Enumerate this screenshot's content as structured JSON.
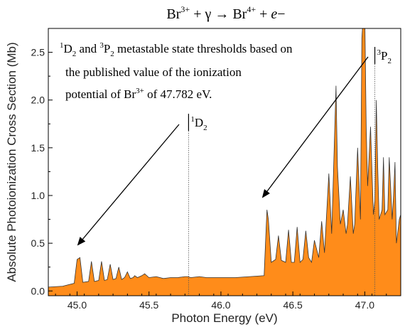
{
  "chart_data": {
    "type": "area",
    "title": {
      "base": "Br",
      "charge1": "3+",
      "plus1": " + γ → Br",
      "charge2": "4+",
      "plus2": " + ",
      "electron": "e",
      "minus": "−"
    },
    "xlabel": "Photon Energy (eV)",
    "ylabel": "Absolute Photoionization Cross Section (Mb)",
    "xlim": [
      44.8,
      47.25
    ],
    "ylim": [
      -0.05,
      2.75
    ],
    "xticks": [
      {
        "v": 45.0,
        "label": "45.0"
      },
      {
        "v": 45.5,
        "label": "45.5"
      },
      {
        "v": 46.0,
        "label": "46.0"
      },
      {
        "v": 46.5,
        "label": "46.5"
      },
      {
        "v": 47.0,
        "label": "47.0"
      }
    ],
    "yticks": [
      {
        "v": 0.0,
        "label": "0.0"
      },
      {
        "v": 0.5,
        "label": "0.5"
      },
      {
        "v": 1.0,
        "label": "1.0"
      },
      {
        "v": 1.5,
        "label": "1.5"
      },
      {
        "v": 2.0,
        "label": "2.0"
      },
      {
        "v": 2.5,
        "label": "2.5"
      }
    ],
    "fill_color": "#ff8c1a",
    "line_color": "#333333",
    "grid": false,
    "series": [
      {
        "x": [
          44.8,
          44.9,
          44.98,
          45.0,
          45.02,
          45.04,
          45.08,
          45.1,
          45.12,
          45.15,
          45.17,
          45.19,
          45.21,
          45.23,
          45.25,
          45.27,
          45.29,
          45.31,
          45.33,
          45.35,
          45.37,
          45.39,
          45.4,
          45.42,
          45.45,
          45.47,
          45.5,
          45.55,
          45.6,
          45.65,
          45.7,
          45.75,
          45.77,
          45.79,
          45.85,
          45.9,
          46.0,
          46.1,
          46.2,
          46.3,
          46.32,
          46.33,
          46.35,
          46.38,
          46.4,
          46.42,
          46.45,
          46.47,
          46.49,
          46.51,
          46.53,
          46.55,
          46.57,
          46.59,
          46.61,
          46.63,
          46.65,
          46.68,
          46.7,
          46.72,
          46.75,
          46.77,
          46.78,
          46.8,
          46.81,
          46.83,
          46.85,
          46.87,
          46.88,
          46.9,
          46.92,
          46.93,
          46.95,
          46.97,
          46.98,
          46.99,
          47.0,
          47.01,
          47.02,
          47.04,
          47.06,
          47.07,
          47.08,
          47.09,
          47.1,
          47.12,
          47.13,
          47.14,
          47.16,
          47.17,
          47.19,
          47.2,
          47.21,
          47.22,
          47.24,
          47.25
        ],
        "y": [
          0.04,
          0.05,
          0.08,
          0.33,
          0.35,
          0.09,
          0.1,
          0.31,
          0.1,
          0.11,
          0.31,
          0.11,
          0.12,
          0.28,
          0.12,
          0.13,
          0.25,
          0.12,
          0.14,
          0.2,
          0.13,
          0.14,
          0.16,
          0.14,
          0.16,
          0.18,
          0.14,
          0.15,
          0.13,
          0.14,
          0.14,
          0.15,
          0.15,
          0.14,
          0.15,
          0.14,
          0.14,
          0.14,
          0.15,
          0.16,
          0.85,
          0.75,
          0.3,
          0.33,
          0.58,
          0.32,
          0.3,
          0.64,
          0.3,
          0.3,
          0.67,
          0.3,
          0.33,
          0.63,
          0.35,
          0.3,
          0.53,
          0.35,
          0.73,
          0.4,
          1.23,
          0.6,
          1.1,
          2.15,
          1.3,
          0.7,
          0.85,
          0.6,
          0.7,
          1.2,
          0.6,
          0.7,
          1.5,
          0.75,
          2.65,
          2.9,
          2.9,
          1.7,
          1.1,
          1.72,
          0.8,
          0.95,
          2.0,
          1.3,
          0.75,
          0.85,
          1.4,
          0.8,
          0.85,
          1.4,
          0.75,
          1.0,
          1.35,
          0.5,
          0.75,
          0.8
        ]
      }
    ],
    "thresholds": [
      {
        "x": 45.775,
        "prefix": "1",
        "letter": "D",
        "sub": "2"
      },
      {
        "x": 47.07,
        "prefix": "3",
        "letter": "P",
        "sub": "2"
      }
    ],
    "annotation": {
      "line1_a": "1",
      "line1_b": "D",
      "line1_c": "2",
      "line1_d": " and ",
      "line1_e": "3",
      "line1_f": "P",
      "line1_g": "2",
      "line1_h": " metastable state thresholds based on",
      "line2": "the published value of the ionization",
      "line3_a": "potential of Br",
      "line3_b": "3+",
      "line3_c": " of 47.782 eV."
    }
  }
}
